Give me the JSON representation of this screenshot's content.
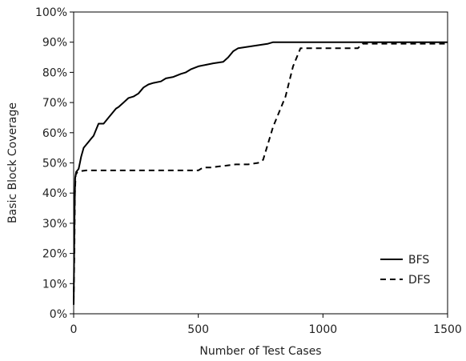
{
  "chart_data": {
    "type": "line",
    "title": "",
    "xlabel": "Number of Test Cases",
    "ylabel": "Basic Block Coverage",
    "xlim": [
      0,
      1500
    ],
    "ylim": [
      0,
      100
    ],
    "x_ticks": [
      0,
      500,
      1000,
      1500
    ],
    "x_tick_labels": [
      "0",
      "500",
      "1000",
      "1500"
    ],
    "y_ticks": [
      0,
      10,
      20,
      30,
      40,
      50,
      60,
      70,
      80,
      90,
      100
    ],
    "y_tick_labels": [
      "0%",
      "10%",
      "20%",
      "30%",
      "40%",
      "50%",
      "60%",
      "70%",
      "80%",
      "90%",
      "100%"
    ],
    "grid": false,
    "legend": {
      "placement": "bottom-right",
      "entries": [
        "BFS",
        "DFS"
      ]
    },
    "series": [
      {
        "name": "BFS",
        "style": "solid",
        "color": "#000000",
        "x": [
          0,
          2,
          4,
          6,
          10,
          15,
          20,
          25,
          30,
          40,
          50,
          60,
          70,
          80,
          90,
          100,
          110,
          120,
          140,
          160,
          170,
          180,
          200,
          220,
          240,
          260,
          280,
          300,
          320,
          350,
          370,
          400,
          430,
          450,
          470,
          500,
          530,
          560,
          600,
          620,
          640,
          660,
          700,
          740,
          780,
          800,
          1500
        ],
        "y": [
          3,
          20,
          35,
          45,
          47,
          47.5,
          48,
          50,
          52,
          55,
          56,
          57,
          58,
          59,
          61,
          63,
          63,
          63,
          65,
          67,
          68,
          68.5,
          70,
          71.5,
          72,
          73,
          75,
          76,
          76.5,
          77,
          78,
          78.5,
          79.5,
          80,
          81,
          82,
          82.5,
          83,
          83.5,
          85,
          87,
          88,
          88.5,
          89,
          89.5,
          90,
          90
        ]
      },
      {
        "name": "DFS",
        "style": "dashed",
        "color": "#000000",
        "x": [
          0,
          3,
          5,
          8,
          15,
          30,
          50,
          100,
          300,
          500,
          520,
          550,
          600,
          650,
          700,
          740,
          760,
          800,
          850,
          880,
          910,
          1000,
          1100,
          1140,
          1160,
          1500
        ],
        "y": [
          4,
          20,
          40,
          46,
          47,
          47.3,
          47.5,
          47.5,
          47.5,
          47.5,
          48.5,
          48.5,
          49,
          49.5,
          49.5,
          50,
          51,
          62,
          72,
          82,
          88,
          88,
          88,
          88,
          89.5,
          89.5
        ]
      }
    ]
  }
}
